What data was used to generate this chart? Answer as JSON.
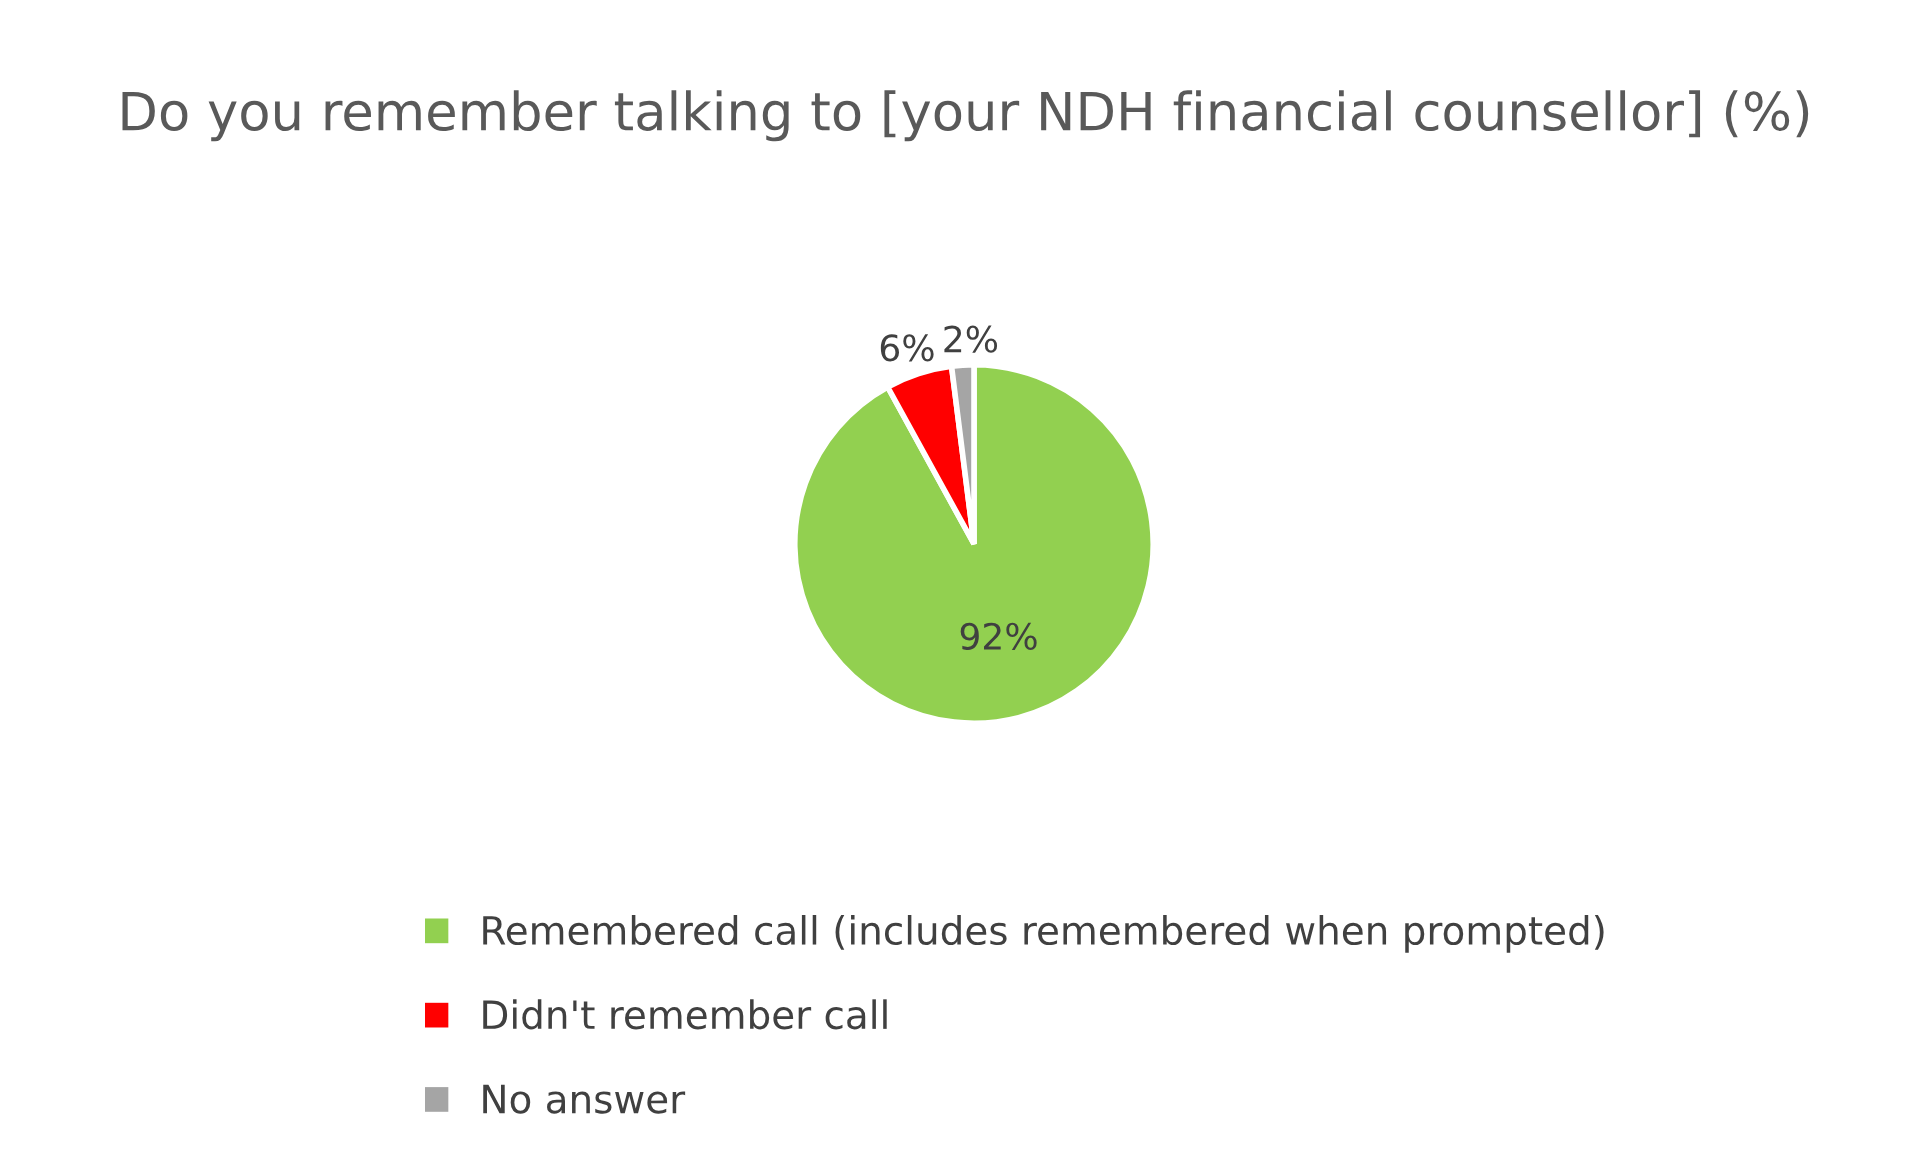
{
  "chart_data": {
    "type": "pie",
    "title": "Do you remember talking to [your NDH financial counsellor] (%)",
    "categories": [
      "Remembered call (includes remembered when prompted)",
      "Didn't remember call",
      "No answer"
    ],
    "values": [
      92,
      6,
      2
    ],
    "colors": [
      "#92d050",
      "#ff0000",
      "#a5a5a5"
    ],
    "value_labels": [
      "92%",
      "6%",
      "2%"
    ],
    "legend": "bottom"
  }
}
